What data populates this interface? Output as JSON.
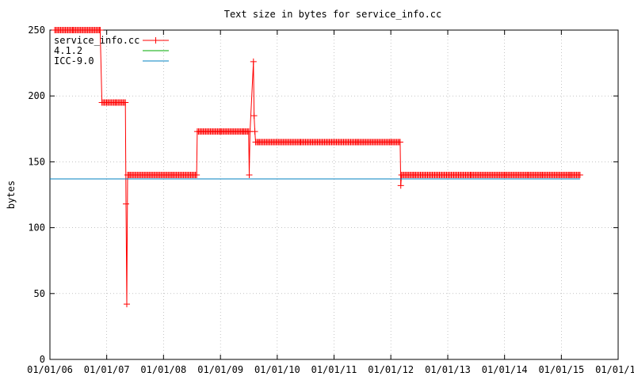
{
  "chart_data": {
    "type": "line",
    "title": "Text size in bytes for service_info.cc",
    "xlabel": "",
    "ylabel": "bytes",
    "ylim": [
      0,
      250
    ],
    "yticks": [
      0,
      50,
      100,
      150,
      200,
      250
    ],
    "xlim": [
      "2006-01-01",
      "2016-01-01"
    ],
    "xticks": [
      "01/01/06",
      "01/01/07",
      "01/01/08",
      "01/01/09",
      "01/01/10",
      "01/01/11",
      "01/01/12",
      "01/01/13",
      "01/01/14",
      "01/01/15",
      "01/01/16"
    ],
    "xtick_dates": [
      "2006-01-01",
      "2007-01-01",
      "2008-01-01",
      "2009-01-01",
      "2010-01-01",
      "2011-01-01",
      "2012-01-01",
      "2013-01-01",
      "2014-01-01",
      "2015-01-01",
      "2016-01-01"
    ],
    "grid": true,
    "legend_position": "top-left",
    "colors": {
      "service_info": "#ff0000",
      "gcc": "#00aa00",
      "icc": "#0080c0"
    },
    "series": [
      {
        "name": "service_info.cc",
        "style": "linespoints",
        "x": [
          "2006-02-01",
          "2006-06-01",
          "2006-11-20",
          "2006-12-01",
          "2007-01-01",
          "2007-03-01",
          "2007-05-01",
          "2007-05-05",
          "2007-05-10",
          "2007-05-15",
          "2007-06-01",
          "2007-10-01",
          "2008-03-01",
          "2008-07-01",
          "2008-08-01",
          "2008-08-05",
          "2009-01-01",
          "2009-06-01",
          "2009-07-01",
          "2009-07-05",
          "2009-07-10",
          "2009-08-01",
          "2009-08-05",
          "2009-08-10",
          "2009-08-15",
          "2009-09-01",
          "2010-01-01",
          "2010-06-01",
          "2011-01-01",
          "2011-06-01",
          "2012-01-01",
          "2012-03-01",
          "2012-03-05",
          "2012-03-10",
          "2012-06-01",
          "2013-01-01",
          "2013-06-01",
          "2014-01-01",
          "2014-06-01",
          "2014-09-01",
          "2015-01-01",
          "2015-03-01",
          "2015-05-01"
        ],
        "y": [
          250,
          250,
          250,
          195,
          195,
          195,
          195,
          118,
          42,
          140,
          140,
          140,
          140,
          140,
          140,
          173,
          173,
          173,
          173,
          140,
          173,
          226,
          185,
          173,
          165,
          165,
          165,
          165,
          165,
          165,
          165,
          165,
          132,
          140,
          140,
          140,
          140,
          140,
          140,
          140,
          140,
          140,
          140
        ]
      },
      {
        "name": "4.1.2",
        "style": "lines",
        "x": [],
        "y": []
      },
      {
        "name": "ICC-9.0",
        "style": "lines",
        "x": [
          "2006-01-01",
          "2015-05-01"
        ],
        "y": [
          137,
          137
        ]
      }
    ]
  }
}
